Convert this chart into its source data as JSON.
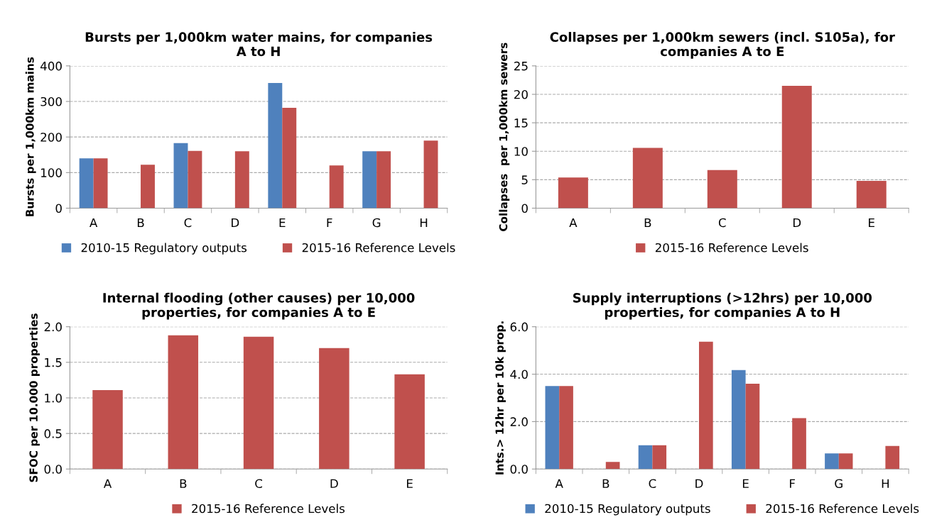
{
  "chart_data": [
    {
      "type": "bar",
      "title": "Bursts per 1,000km water mains, for companies\nA to H",
      "ylabel": "Bursts per 1,000km mains",
      "categories": [
        "A",
        "B",
        "C",
        "D",
        "E",
        "F",
        "G",
        "H"
      ],
      "series": [
        {
          "name": "2010-15 Regulatory outputs",
          "color": "#4f81bd",
          "values": [
            140,
            null,
            183,
            null,
            352,
            null,
            160,
            null
          ]
        },
        {
          "name": "2015-16 Reference Levels",
          "color": "#c0504d",
          "values": [
            140,
            122,
            161,
            160,
            282,
            120,
            160,
            190
          ]
        }
      ],
      "ylim": [
        0,
        400
      ],
      "yticks": [
        0,
        100,
        200,
        300,
        400
      ],
      "grid": "y",
      "legend": "bottom"
    },
    {
      "type": "bar",
      "title": "Collapses per 1,000km sewers (incl. S105a), for\ncompanies A to E",
      "ylabel": "Collapses  per 1,000km sewers",
      "categories": [
        "A",
        "B",
        "C",
        "D",
        "E"
      ],
      "series": [
        {
          "name": "2015-16 Reference Levels",
          "color": "#c0504d",
          "values": [
            5.4,
            10.6,
            6.7,
            21.5,
            4.8
          ]
        }
      ],
      "ylim": [
        0,
        25
      ],
      "yticks": [
        0,
        5,
        10,
        15,
        20,
        25
      ],
      "grid": "y",
      "legend": "bottom"
    },
    {
      "type": "bar",
      "title": "Internal flooding (other causes) per 10,000\nproperties, for companies A to E",
      "ylabel": "SFOC per 10.000 properties",
      "categories": [
        "A",
        "B",
        "C",
        "D",
        "E"
      ],
      "series": [
        {
          "name": "2015-16 Reference Levels",
          "color": "#c0504d",
          "values": [
            1.11,
            1.88,
            1.86,
            1.7,
            1.33
          ]
        }
      ],
      "ylim": [
        0,
        2.0
      ],
      "yticks": [
        {
          "value": 0,
          "label": "0.0"
        },
        {
          "value": 0.5,
          "label": "0.5"
        },
        {
          "value": 1.0,
          "label": "1.0"
        },
        {
          "value": 1.5,
          "label": "1.5"
        },
        {
          "value": 2.0,
          "label": "2.0"
        }
      ],
      "grid": "y",
      "legend": "bottom"
    },
    {
      "type": "bar",
      "title": "Supply interruptions (>12hrs) per 10,000\nproperties, for companies A to H",
      "ylabel": "Ints.> 12hr per 10k prop.",
      "categories": [
        "A",
        "B",
        "C",
        "D",
        "E",
        "F",
        "G",
        "H"
      ],
      "series": [
        {
          "name": "2010-15 Regulatory outputs",
          "color": "#4f81bd",
          "values": [
            3.5,
            null,
            1.0,
            null,
            4.17,
            null,
            0.66,
            null
          ]
        },
        {
          "name": "2015-16 Reference Levels",
          "color": "#c0504d",
          "values": [
            3.5,
            0.3,
            1.0,
            5.37,
            3.6,
            2.15,
            0.66,
            0.97
          ]
        }
      ],
      "ylim": [
        0,
        6.0
      ],
      "yticks": [
        {
          "value": 0,
          "label": "0.0"
        },
        {
          "value": 2.0,
          "label": "2.0"
        },
        {
          "value": 4.0,
          "label": "4.0"
        },
        {
          "value": 6.0,
          "label": "6.0"
        }
      ],
      "grid": "y",
      "legend": "bottom"
    }
  ]
}
